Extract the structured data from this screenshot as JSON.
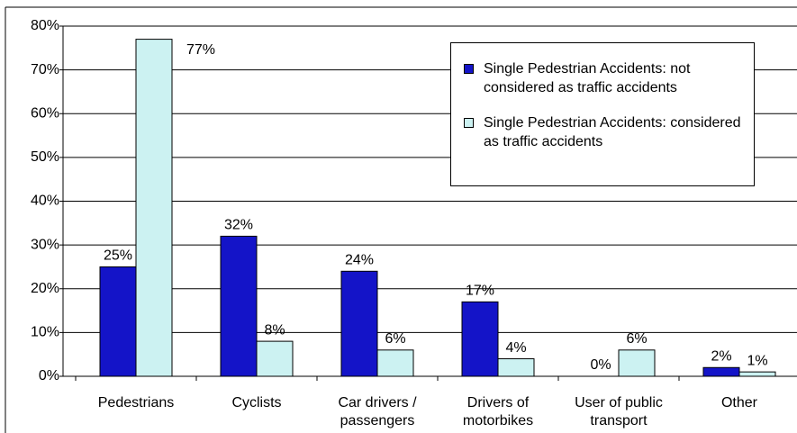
{
  "chart_data": {
    "type": "bar",
    "categories": [
      "Pedestrians",
      "Cyclists",
      "Car drivers / passengers",
      "Drivers of motorbikes",
      "User of public transport",
      "Other"
    ],
    "series": [
      {
        "name": "Single Pedestrian Accidents: not considered as traffic accidents",
        "color": "#1414c8",
        "values": [
          25,
          32,
          24,
          17,
          0,
          2
        ],
        "value_labels": [
          "25%",
          "32%",
          "24%",
          "17%",
          "0%",
          "2%"
        ]
      },
      {
        "name": "Single Pedestrian Accidents: considered as traffic accidents",
        "color": "#ccf2f2",
        "values": [
          77,
          8,
          6,
          4,
          6,
          1
        ],
        "value_labels": [
          "77%",
          "8%",
          "6%",
          "4%",
          "6%",
          "1%"
        ]
      }
    ],
    "ylim": [
      0,
      80
    ],
    "yticks": [
      {
        "value": 0,
        "label": "0%"
      },
      {
        "value": 10,
        "label": "10%"
      },
      {
        "value": 20,
        "label": "20%"
      },
      {
        "value": 30,
        "label": "30%"
      },
      {
        "value": 40,
        "label": "40%"
      },
      {
        "value": 50,
        "label": "50%"
      },
      {
        "value": 60,
        "label": "60%"
      },
      {
        "value": 70,
        "label": "70%"
      },
      {
        "value": 80,
        "label": "80%"
      }
    ],
    "grid": true,
    "legend": "upper right"
  }
}
